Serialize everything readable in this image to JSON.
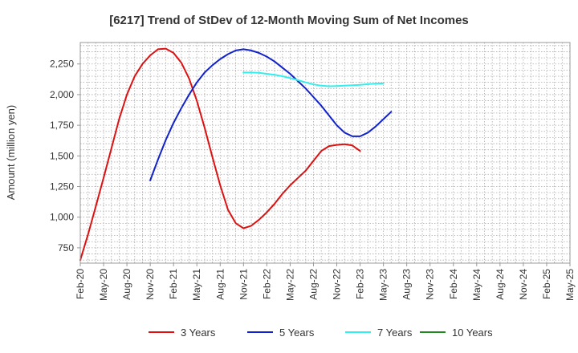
{
  "chart_data": {
    "type": "line",
    "title": "[6217]  Trend of StDev of 12-Month Moving Sum of Net Incomes",
    "xlabel": "",
    "ylabel": "Amount (million yen)",
    "ylim": [
      625,
      2425
    ],
    "yticks": [
      750,
      1000,
      1250,
      1500,
      1750,
      2000,
      2250
    ],
    "ytick_labels": [
      "750",
      "1,000",
      "1,250",
      "1,500",
      "1,750",
      "2,000",
      "2,250"
    ],
    "x_tick_labels": [
      "Feb-20",
      "May-20",
      "Aug-20",
      "Nov-20",
      "Feb-21",
      "May-21",
      "Aug-21",
      "Nov-21",
      "Feb-22",
      "May-22",
      "Aug-22",
      "Nov-22",
      "Feb-23",
      "May-23",
      "Aug-23",
      "Nov-23",
      "Feb-24",
      "May-24",
      "Aug-24",
      "Nov-24",
      "Feb-25",
      "May-25"
    ],
    "grid": true,
    "legend_position": "bottom",
    "series": [
      {
        "name": "3 Years",
        "color": "#dd1111",
        "points": [
          [
            0,
            650
          ],
          [
            1,
            860
          ],
          [
            2,
            1090
          ],
          [
            3,
            1320
          ],
          [
            4,
            1560
          ],
          [
            5,
            1800
          ],
          [
            6,
            2000
          ],
          [
            7,
            2150
          ],
          [
            8,
            2250
          ],
          [
            9,
            2320
          ],
          [
            10,
            2370
          ],
          [
            11,
            2375
          ],
          [
            12,
            2340
          ],
          [
            13,
            2260
          ],
          [
            14,
            2130
          ],
          [
            15,
            1950
          ],
          [
            16,
            1730
          ],
          [
            17,
            1490
          ],
          [
            18,
            1260
          ],
          [
            19,
            1060
          ],
          [
            20,
            950
          ],
          [
            21,
            910
          ],
          [
            22,
            930
          ],
          [
            23,
            980
          ],
          [
            24,
            1040
          ],
          [
            25,
            1110
          ],
          [
            26,
            1190
          ],
          [
            27,
            1260
          ],
          [
            28,
            1320
          ],
          [
            29,
            1380
          ],
          [
            30,
            1460
          ],
          [
            31,
            1540
          ],
          [
            32,
            1580
          ],
          [
            33,
            1590
          ],
          [
            34,
            1595
          ],
          [
            35,
            1585
          ],
          [
            36,
            1540
          ]
        ]
      },
      {
        "name": "5 Years",
        "color": "#1122cc",
        "points": [
          [
            9,
            1300
          ],
          [
            10,
            1470
          ],
          [
            11,
            1630
          ],
          [
            12,
            1770
          ],
          [
            13,
            1890
          ],
          [
            14,
            2000
          ],
          [
            15,
            2100
          ],
          [
            16,
            2180
          ],
          [
            17,
            2240
          ],
          [
            18,
            2290
          ],
          [
            19,
            2330
          ],
          [
            20,
            2360
          ],
          [
            21,
            2370
          ],
          [
            22,
            2360
          ],
          [
            23,
            2340
          ],
          [
            24,
            2310
          ],
          [
            25,
            2270
          ],
          [
            26,
            2220
          ],
          [
            27,
            2170
          ],
          [
            28,
            2110
          ],
          [
            29,
            2050
          ],
          [
            30,
            1980
          ],
          [
            31,
            1910
          ],
          [
            32,
            1830
          ],
          [
            33,
            1750
          ],
          [
            34,
            1690
          ],
          [
            35,
            1660
          ],
          [
            36,
            1660
          ],
          [
            37,
            1690
          ],
          [
            38,
            1740
          ],
          [
            39,
            1800
          ],
          [
            40,
            1860
          ]
        ]
      },
      {
        "name": "7 Years",
        "color": "#33eeee",
        "points": [
          [
            21,
            2180
          ],
          [
            22,
            2180
          ],
          [
            23,
            2178
          ],
          [
            24,
            2170
          ],
          [
            25,
            2162
          ],
          [
            26,
            2150
          ],
          [
            27,
            2135
          ],
          [
            28,
            2118
          ],
          [
            29,
            2100
          ],
          [
            30,
            2083
          ],
          [
            31,
            2073
          ],
          [
            32,
            2068
          ],
          [
            33,
            2070
          ],
          [
            34,
            2073
          ],
          [
            35,
            2076
          ],
          [
            36,
            2080
          ],
          [
            37,
            2085
          ],
          [
            38,
            2090
          ],
          [
            39,
            2092
          ]
        ]
      },
      {
        "name": "10 Years",
        "color": "#228822",
        "points": []
      }
    ]
  }
}
